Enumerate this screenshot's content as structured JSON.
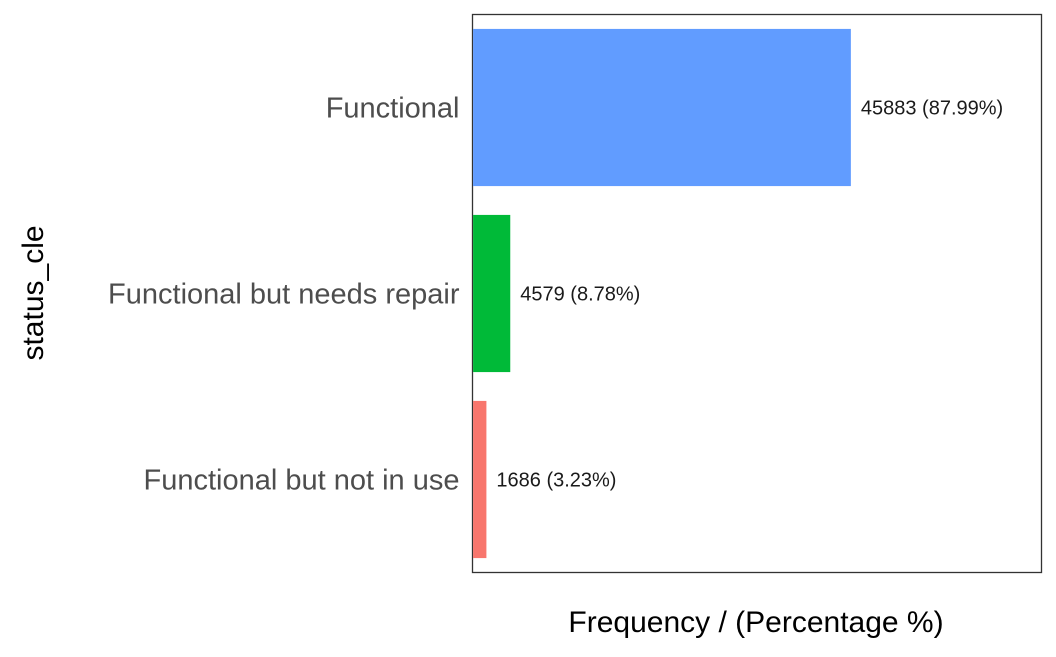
{
  "chart_data": {
    "type": "bar",
    "orientation": "horizontal",
    "title": "",
    "xlabel": "Frequency / (Percentage %)",
    "ylabel": "status_cle",
    "categories": [
      "Functional",
      "Functional but needs repair",
      "Functional but not in use"
    ],
    "values": [
      45883,
      4579,
      1686
    ],
    "data_labels": [
      "45883 (87.99%)",
      "4579 (8.78%)",
      "1686 (3.23%)"
    ],
    "colors": [
      "#619CFF",
      "#00BA38",
      "#F8766D"
    ],
    "xlim": [
      0,
      69000
    ],
    "grid": false,
    "legend": "none",
    "x_tick_labels": false
  }
}
